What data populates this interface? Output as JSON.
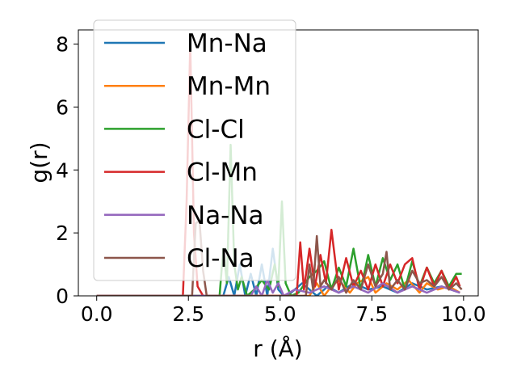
{
  "chart_data": {
    "type": "line",
    "xlabel": "r (Å)",
    "ylabel": "g(r)",
    "xlim": [
      -0.5,
      10.4
    ],
    "ylim": [
      0,
      8.45
    ],
    "xticks": [
      0.0,
      2.5,
      5.0,
      7.5,
      10.0
    ],
    "xtick_labels": [
      "0.0",
      "2.5",
      "5.0",
      "7.5",
      "10.0"
    ],
    "yticks": [
      0,
      2,
      4,
      6,
      8
    ],
    "ytick_labels": [
      "0",
      "2",
      "4",
      "6",
      "8"
    ],
    "grid": false,
    "legend_position": "top-left",
    "series": [
      {
        "name": "Mn-Na",
        "color": "#1f77b4",
        "x": [
          0.0,
          3.45,
          3.6,
          3.75,
          3.9,
          4.05,
          4.2,
          4.35,
          4.5,
          4.65,
          4.8,
          4.95,
          5.1,
          5.3,
          5.6,
          6.0,
          6.3,
          6.6,
          7.0,
          7.4,
          7.8,
          8.2,
          8.6,
          9.0,
          9.4,
          9.9
        ],
        "y": [
          0.0,
          0.0,
          0.6,
          0.0,
          1.0,
          0.0,
          0.7,
          0.0,
          1.0,
          0.0,
          1.5,
          0.2,
          0.0,
          0.1,
          0.4,
          0.0,
          0.3,
          0.1,
          0.4,
          0.2,
          0.3,
          0.1,
          0.4,
          0.2,
          0.3,
          0.1
        ]
      },
      {
        "name": "Mn-Mn",
        "color": "#ff7f0e",
        "x": [
          0.0,
          5.8,
          6.0,
          6.2,
          6.4,
          6.6,
          6.9,
          7.1,
          7.4,
          7.6,
          7.9,
          8.2,
          8.5,
          8.8,
          9.0,
          9.3,
          9.6,
          9.9
        ],
        "y": [
          0.0,
          0.0,
          0.4,
          0.0,
          0.3,
          0.5,
          0.1,
          0.4,
          0.6,
          0.1,
          0.4,
          0.2,
          0.5,
          0.1,
          0.4,
          0.2,
          0.3,
          0.1
        ]
      },
      {
        "name": "Cl-Cl",
        "color": "#2ca02c",
        "x": [
          0.0,
          3.35,
          3.45,
          3.55,
          3.65,
          3.75,
          3.85,
          3.95,
          4.1,
          4.3,
          4.5,
          4.7,
          4.85,
          4.95,
          5.05,
          5.15,
          5.3,
          5.5,
          5.8,
          6.0,
          6.2,
          6.4,
          6.6,
          6.8,
          7.0,
          7.2,
          7.4,
          7.6,
          7.8,
          8.0,
          8.2,
          8.4,
          8.6,
          8.8,
          9.0,
          9.2,
          9.4,
          9.6,
          9.8,
          9.95
        ],
        "y": [
          0.0,
          0.0,
          1.5,
          0.4,
          4.8,
          1.0,
          0.2,
          0.6,
          0.0,
          0.2,
          0.5,
          0.2,
          1.0,
          0.3,
          3.0,
          0.4,
          0.0,
          0.1,
          0.6,
          0.8,
          1.1,
          0.2,
          0.9,
          0.3,
          1.5,
          0.2,
          1.3,
          0.3,
          1.2,
          0.5,
          1.0,
          0.2,
          1.1,
          0.3,
          0.9,
          0.4,
          0.8,
          0.3,
          0.7,
          0.7
        ]
      },
      {
        "name": "Cl-Mn",
        "color": "#d62728",
        "x": [
          0.0,
          2.35,
          2.45,
          2.55,
          2.65,
          2.75,
          2.9,
          3.3,
          5.45,
          5.55,
          5.65,
          5.8,
          5.95,
          6.1,
          6.25,
          6.4,
          6.6,
          6.8,
          7.0,
          7.2,
          7.4,
          7.6,
          7.8,
          8.0,
          8.2,
          8.4,
          8.6,
          8.8,
          9.0,
          9.2,
          9.4,
          9.6,
          9.8,
          9.9
        ],
        "y": [
          0.0,
          0.0,
          3.0,
          8.0,
          2.0,
          0.3,
          0.0,
          0.0,
          0.0,
          1.7,
          0.2,
          1.5,
          0.3,
          1.3,
          0.4,
          2.1,
          0.2,
          1.2,
          0.3,
          0.8,
          0.2,
          1.0,
          0.3,
          1.0,
          0.4,
          1.0,
          1.2,
          0.2,
          0.9,
          0.3,
          0.8,
          0.2,
          0.6,
          0.3
        ]
      },
      {
        "name": "Na-Na",
        "color": "#9467bd",
        "x": [
          0.0,
          4.2,
          4.35,
          4.5,
          4.65,
          4.8,
          4.95,
          5.1,
          5.4,
          5.8,
          6.2,
          6.6,
          7.0,
          7.4,
          7.8,
          8.2,
          8.6,
          9.0,
          9.4,
          9.9
        ],
        "y": [
          0.0,
          0.0,
          0.3,
          0.0,
          0.5,
          0.1,
          0.4,
          0.0,
          0.2,
          0.1,
          0.3,
          0.1,
          0.3,
          0.1,
          0.4,
          0.1,
          0.3,
          0.1,
          0.3,
          0.1
        ]
      },
      {
        "name": "Cl-Na",
        "color": "#8c564b",
        "x": [
          0.0,
          2.6,
          2.7,
          2.8,
          2.9,
          3.0,
          3.2,
          5.7,
          5.8,
          5.9,
          6.0,
          6.1,
          6.2,
          6.4,
          6.6,
          6.8,
          7.0,
          7.2,
          7.4,
          7.6,
          7.8,
          7.9,
          8.0,
          8.2,
          8.4,
          8.6,
          8.8,
          9.0,
          9.2,
          9.4,
          9.6,
          9.8,
          9.95
        ],
        "y": [
          0.0,
          0.0,
          2.3,
          2.4,
          0.8,
          0.0,
          0.0,
          0.0,
          1.0,
          0.2,
          1.9,
          0.3,
          0.5,
          0.2,
          0.6,
          0.1,
          0.5,
          0.2,
          1.0,
          0.3,
          0.7,
          1.4,
          0.2,
          0.5,
          0.2,
          0.8,
          0.4,
          0.5,
          0.3,
          0.6,
          0.2,
          0.4,
          0.2
        ]
      }
    ]
  }
}
